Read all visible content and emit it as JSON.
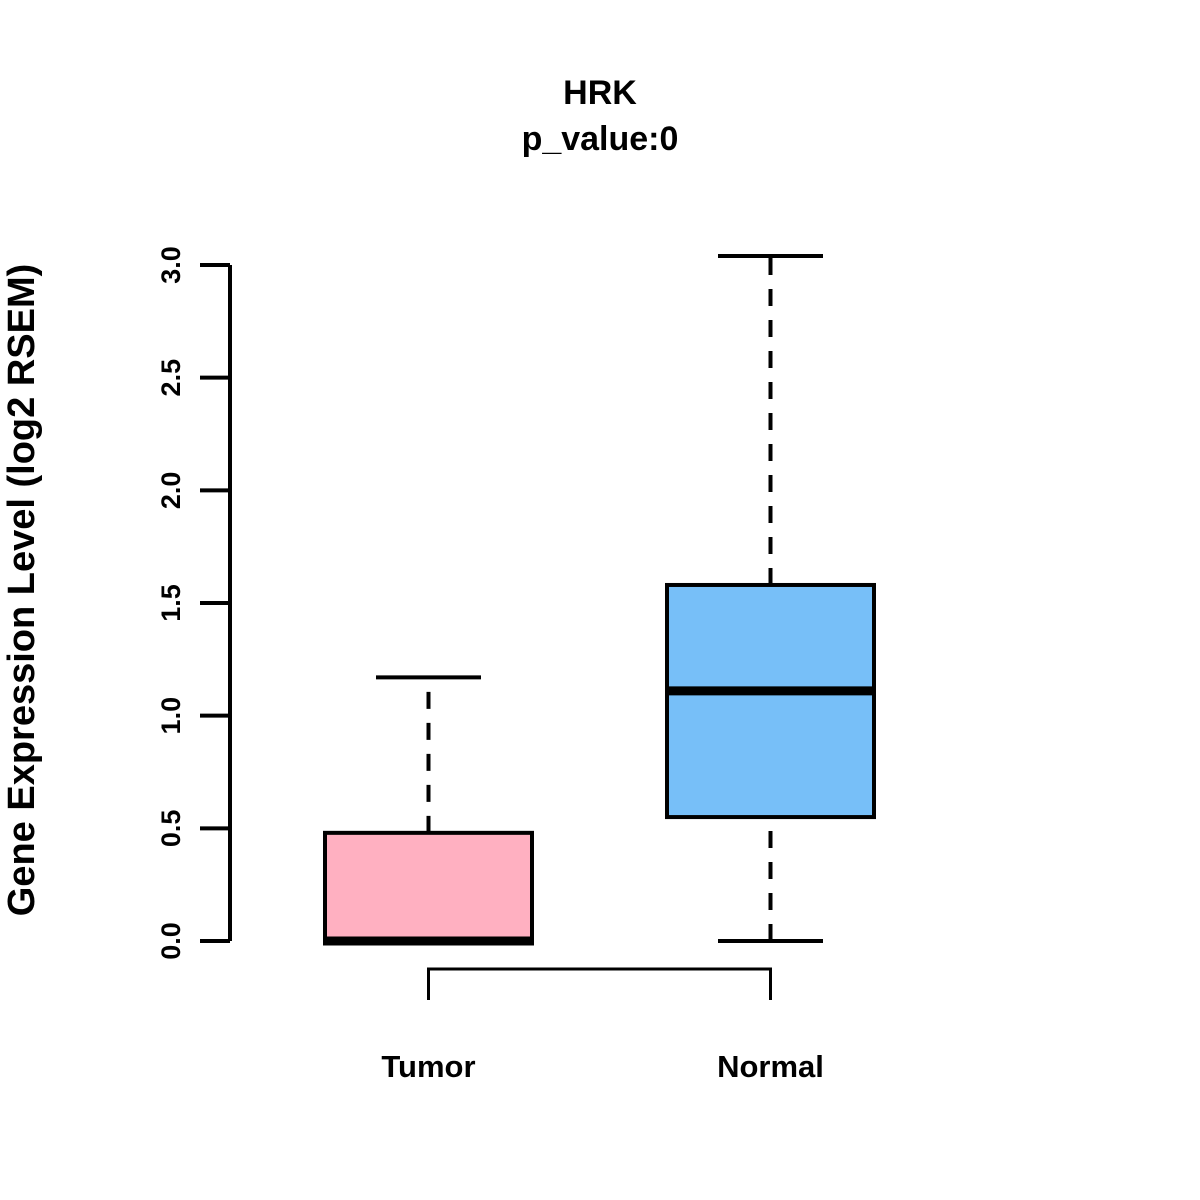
{
  "figure": {
    "background": "#ffffff",
    "title": "HRK",
    "subtitle": "p_value:0",
    "ylabel": "Gene Expression Level (log2 RSEM)"
  },
  "chart_data": {
    "type": "boxplot",
    "title": "HRK",
    "subtitle": "p_value:0",
    "xlabel": "",
    "ylabel": "Gene Expression Level (log2 RSEM)",
    "ylim": [
      0,
      3.04
    ],
    "yticks": [
      "0.0",
      "0.5",
      "1.0",
      "1.5",
      "2.0",
      "2.5",
      "3.0"
    ],
    "grid": false,
    "legend": "none",
    "categories": [
      "Tumor",
      "Normal"
    ],
    "series": [
      {
        "name": "Tumor",
        "box_fill": "#FFB0C1",
        "min": 0.0,
        "q1": 0.0,
        "median": 0.0,
        "q3": 0.48,
        "max": 1.17,
        "outliers": []
      },
      {
        "name": "Normal",
        "box_fill": "#77BFF8",
        "min": 0.0,
        "q1": 0.55,
        "median": 1.11,
        "q3": 1.58,
        "max": 3.04,
        "outliers": []
      }
    ],
    "comparison_bracket": {
      "between": [
        "Tumor",
        "Normal"
      ],
      "label": ""
    },
    "colors": {
      "stroke": "#000000",
      "text": "#000000"
    }
  }
}
